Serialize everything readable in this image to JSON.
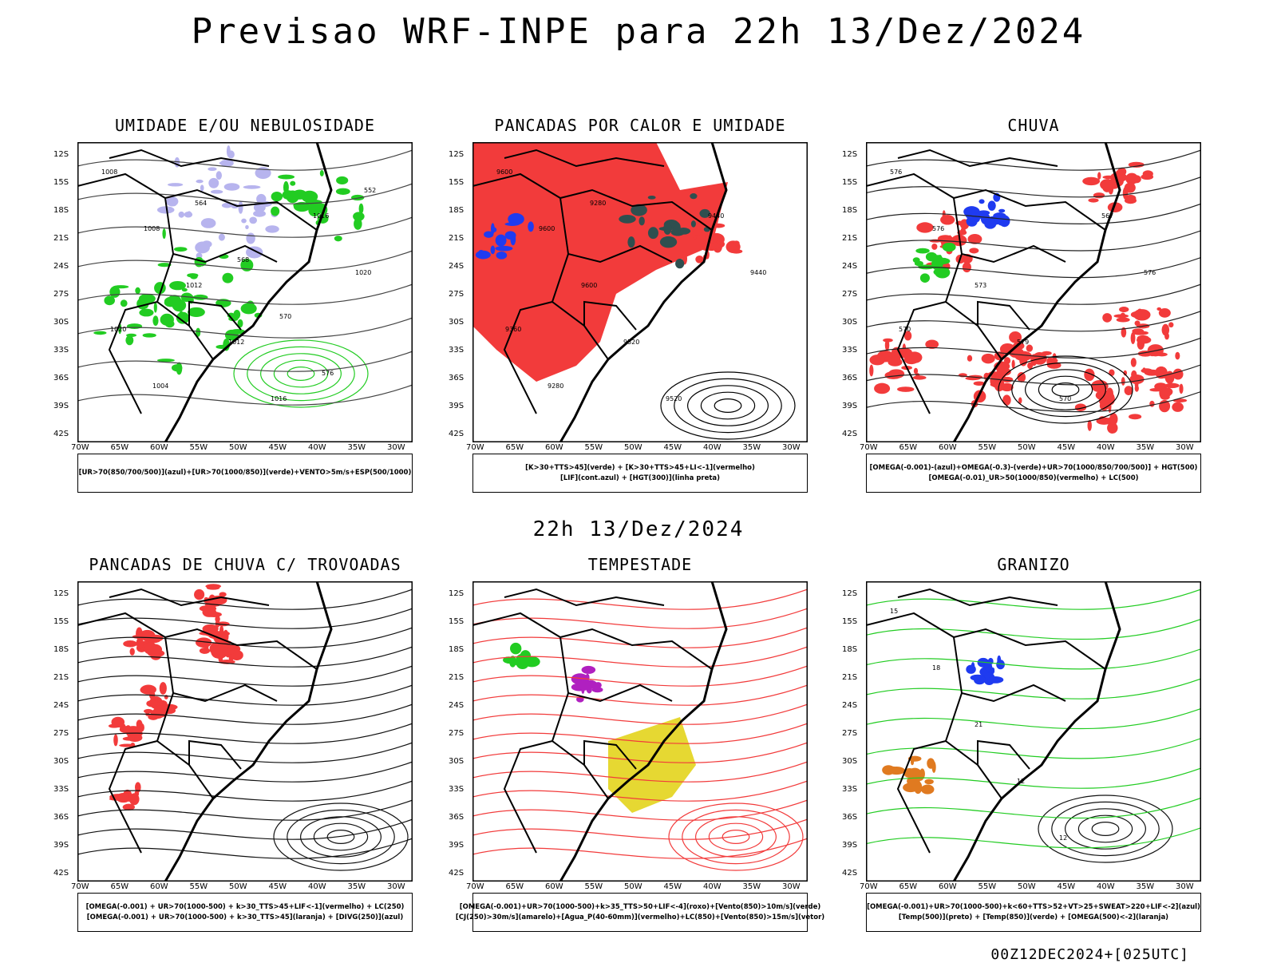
{
  "main_title": "Previsao WRF-INPE  para 22h 13/Dez/2024",
  "mid_title": "22h 13/Dez/2024",
  "footer": "00Z12DEC2024+[025UTC]",
  "lat_labels": [
    "12S",
    "15S",
    "18S",
    "21S",
    "24S",
    "27S",
    "30S",
    "33S",
    "36S",
    "39S",
    "42S"
  ],
  "lon_labels": [
    "70W",
    "65W",
    "60W",
    "55W",
    "50W",
    "45W",
    "40W",
    "35W",
    "30W"
  ],
  "colors": {
    "red": "#f23b3b",
    "green": "#22cc22",
    "blue": "#1f3bf0",
    "lavender": "#b7b4ee",
    "yellow": "#e6d832",
    "darkteal": "#2f4f4f",
    "purple": "#b020c0",
    "orange": "#e07a20"
  },
  "panels": [
    {
      "title": "UMIDADE E/OU NEBULOSIDADE",
      "legend": [
        "[UR>70(850/700/500)](azul)+[UR>70(1000/850)](verde)+VENTO>5m/s+ESP(500/1000)"
      ],
      "contour_labels": [
        "1008",
        "1008",
        "1012",
        "1012",
        "1016",
        "1016",
        "1020",
        "1020",
        "1004",
        "564",
        "568",
        "570",
        "576",
        "552"
      ]
    },
    {
      "title": "PANCADAS POR CALOR E UMIDADE",
      "legend": [
        "[K>30+TTS>45](verde) + [K>30+TTS>45+LI<-1](vermelho)",
        "[LIF](cont.azul) + [HGT(300)](linha preta)"
      ],
      "contour_labels": [
        "9600",
        "9600",
        "9600",
        "9520",
        "9520",
        "9440",
        "9440",
        "9360",
        "9280",
        "9280"
      ]
    },
    {
      "title": "CHUVA",
      "legend": [
        "[OMEGA(-0.001)-(azul)+OMEGA(-0.3)-(verde)+UR>70(1000/850/700/500)] + HGT(500)",
        "[OMEGA(-0.01)_UR>50(1000/850)(vermelho) + LC(500)"
      ],
      "contour_labels": [
        "576",
        "576",
        "573",
        "579",
        "570",
        "567",
        "576",
        "570"
      ]
    },
    {
      "title": "PANCADAS DE CHUVA C/ TROVOADAS",
      "legend": [
        "[OMEGA(-0.001) + UR>70(1000-500) + k>30_TTS>45+LIF<-1](vermelho) + LC(250)",
        "[OMEGA(-0.001) + UR>70(1000-500) + k>30_TTS>45](laranja) + [DIVG(250)](azul)"
      ],
      "contour_labels": []
    },
    {
      "title": "TEMPESTADE",
      "legend": [
        "[OMEGA(-0.001)+UR>70(1000-500)+k>35_TTS>50+LIF<-4](roxo)+[Vento(850)>10m/s](verde)",
        "[CJ(250)>30m/s](amarelo)+[Agua_P(40-60mm)](vermelho)+LC(850)+[Vento(850)>15m/s](vetor)"
      ],
      "contour_labels": []
    },
    {
      "title": "GRANIZO",
      "legend": [
        "[OMEGA(-0.001)+UR>70(1000-500)+k<60+TTS>52+VT>25+SWEAT>220+LIF<-2](azul)",
        "[Temp(500)](preto) + [Temp(850)](verde) + [OMEGA(500)<-2](laranja)"
      ],
      "contour_labels": [
        "15",
        "18",
        "21",
        "12",
        "12"
      ]
    }
  ]
}
